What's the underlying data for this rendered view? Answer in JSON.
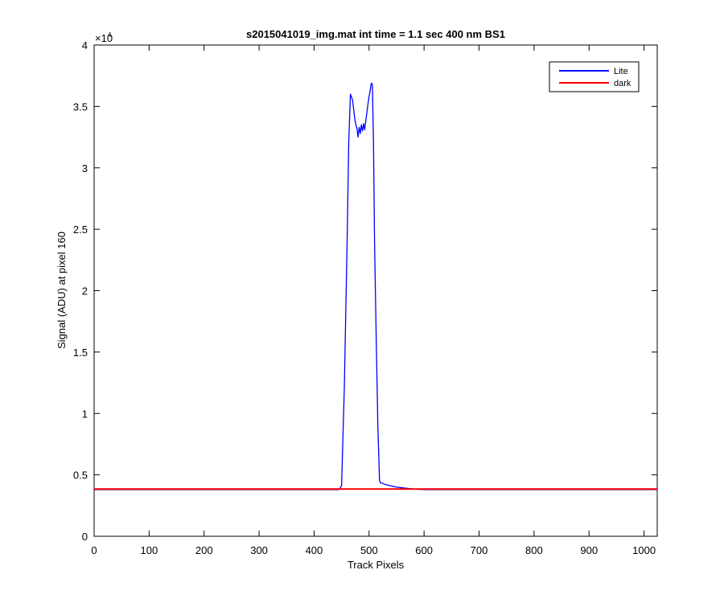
{
  "chart_data": {
    "type": "line",
    "title": "s2015041019_img.mat int time = 1.1 sec  400 nm BS1",
    "xlabel": "Track Pixels",
    "ylabel": "Signal (ADU) at pixel 160",
    "xlim": [
      0,
      1024
    ],
    "ylim": [
      0,
      40000
    ],
    "y_exponent_label": "×10",
    "y_exponent_power": "4",
    "x_ticks": [
      0,
      100,
      200,
      300,
      400,
      500,
      600,
      700,
      800,
      900,
      1000
    ],
    "x_tick_labels": [
      "0",
      "100",
      "200",
      "300",
      "400",
      "500",
      "600",
      "700",
      "800",
      "900",
      "1000"
    ],
    "y_ticks": [
      0,
      5000,
      10000,
      15000,
      20000,
      25000,
      30000,
      35000,
      40000
    ],
    "y_tick_labels": [
      "0",
      "0.5",
      "1",
      "1.5",
      "2",
      "2.5",
      "3",
      "3.5",
      "4"
    ],
    "grid": false,
    "legend_position": "top-right",
    "series": [
      {
        "name": "Lite",
        "color": "#0000ff",
        "x": [
          0,
          100,
          200,
          300,
          400,
          445,
          450,
          455,
          460,
          463,
          466,
          470,
          474,
          476,
          478,
          480,
          482,
          484,
          486,
          488,
          490,
          492,
          494,
          496,
          498,
          500,
          502,
          504,
          506,
          508,
          510,
          513,
          516,
          519,
          521,
          525,
          530,
          540,
          550,
          560,
          570,
          580,
          600,
          700,
          800,
          900,
          1024
        ],
        "values": [
          3800,
          3800,
          3800,
          3800,
          3800,
          3800,
          4100,
          12000,
          24000,
          32000,
          36000,
          35500,
          34000,
          33500,
          33200,
          32500,
          33300,
          32800,
          33500,
          33000,
          33600,
          33100,
          33800,
          34500,
          35200,
          35800,
          36300,
          36900,
          36800,
          32000,
          24000,
          16000,
          9000,
          4500,
          4350,
          4300,
          4200,
          4100,
          4000,
          3950,
          3900,
          3850,
          3800,
          3800,
          3800,
          3800,
          3800
        ]
      },
      {
        "name": "dark",
        "color": "#ff0000",
        "x": [
          0,
          1024
        ],
        "values": [
          3850,
          3850
        ]
      }
    ]
  }
}
